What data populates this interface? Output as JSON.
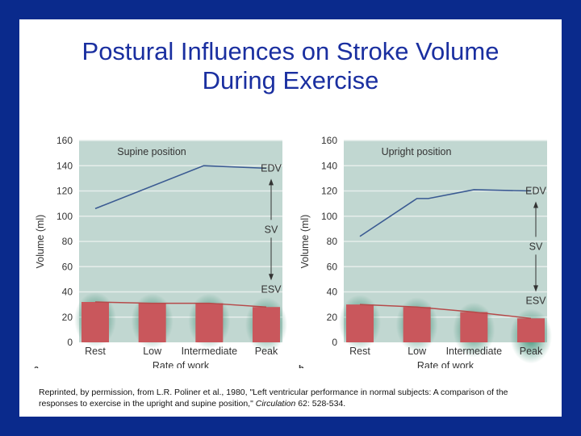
{
  "slide": {
    "title": "Postural Influences on Stroke Volume\nDuring Exercise",
    "credit_prefix": "Reprinted, by permission, from L.R. Poliner et al., 1980, \"Left ventricular performance in normal subjects: A comparison of the responses to exercise in the upright and supine position,\" ",
    "credit_journal": "Circulation",
    "credit_suffix": " 62: 528-534."
  },
  "chart_data": [
    {
      "type": "bar",
      "panel_label": "a",
      "title": "Supine position",
      "xlabel": "Rate of work",
      "ylabel": "Volume (ml)",
      "ylim": [
        0,
        160
      ],
      "yticks": [
        0,
        20,
        40,
        60,
        80,
        100,
        120,
        140,
        160
      ],
      "categories": [
        "Rest",
        "Low",
        "Intermediate",
        "Peak"
      ],
      "series": [
        {
          "name": "ESV",
          "kind": "bar",
          "values": [
            32,
            31,
            31,
            28
          ]
        },
        {
          "name": "EDV",
          "kind": "line",
          "x": [
            0,
            1.9,
            3
          ],
          "values": [
            106,
            140,
            138
          ]
        }
      ],
      "annotations": {
        "top": "EDV",
        "middle": "SV",
        "bottom": "ESV"
      },
      "colors": {
        "plot_bg": "#c1d7d1",
        "bar": "#c9575c",
        "edv_line": "#3a5a92",
        "esv_line": "#b64a4a",
        "glow": "#1b7a5c"
      },
      "grid": true
    },
    {
      "type": "bar",
      "panel_label": "b",
      "title": "Upright position",
      "xlabel": "Rate of work",
      "ylabel": "Volume (ml)",
      "ylim": [
        0,
        160
      ],
      "yticks": [
        0,
        20,
        40,
        60,
        80,
        100,
        120,
        140,
        160
      ],
      "categories": [
        "Rest",
        "Low",
        "Intermediate",
        "Peak"
      ],
      "series": [
        {
          "name": "ESV",
          "kind": "bar",
          "values": [
            30,
            28,
            24,
            19
          ]
        },
        {
          "name": "EDV",
          "kind": "line",
          "x": [
            0,
            1,
            1.2,
            2,
            3
          ],
          "values": [
            84,
            114,
            114,
            121,
            120
          ]
        }
      ],
      "annotations": {
        "top": "EDV",
        "middle": "SV",
        "bottom": "ESV"
      },
      "colors": {
        "plot_bg": "#c1d7d1",
        "bar": "#c9575c",
        "edv_line": "#3a5a92",
        "esv_line": "#b64a4a",
        "glow": "#1b7a5c"
      },
      "grid": true
    }
  ]
}
